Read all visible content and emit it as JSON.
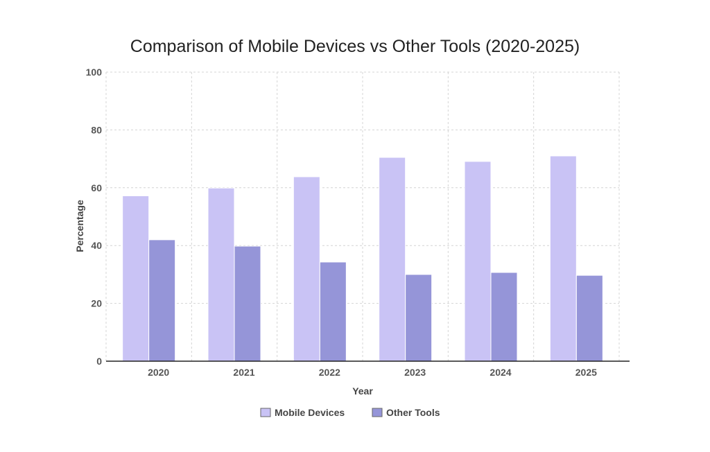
{
  "chart_data": {
    "type": "bar",
    "title": "Comparison of Mobile Devices vs Other Tools (2020-2025)",
    "xlabel": "Year",
    "ylabel": "Percentage",
    "ylim": [
      0,
      100
    ],
    "yticks": [
      0,
      20,
      40,
      60,
      80,
      100
    ],
    "categories": [
      "2020",
      "2021",
      "2022",
      "2023",
      "2024",
      "2025"
    ],
    "series": [
      {
        "name": "Mobile Devices",
        "color": "#C9C3F5",
        "values": [
          57.2,
          59.9,
          63.8,
          70.5,
          69.1,
          71.0
        ]
      },
      {
        "name": "Other Tools",
        "color": "#9595D8",
        "values": [
          42.0,
          39.8,
          34.3,
          30.0,
          30.7,
          29.7
        ]
      }
    ],
    "grid": true,
    "legend": "bottom-center"
  }
}
